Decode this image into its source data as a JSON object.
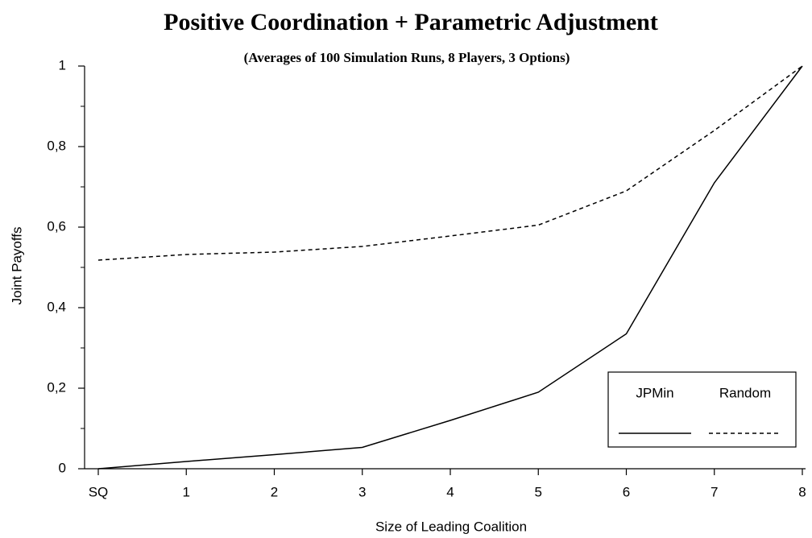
{
  "chart_data": {
    "type": "line",
    "title": "Positive Coordination + Parametric Adjustment",
    "subtitle": "(Averages of 100 Simulation Runs, 8 Players, 3 Options)",
    "x_label": "Size of Leading Coalition",
    "y_label": "Joint Payoffs",
    "categories": [
      "SQ",
      "1",
      "2",
      "3",
      "4",
      "5",
      "6",
      "7",
      "8"
    ],
    "series": [
      {
        "name": "JPMin",
        "color": "#000000",
        "dash": "solid",
        "values": [
          0,
          0.018,
          0.035,
          0.053,
          0.12,
          0.19,
          0.335,
          0.71,
          1.0
        ]
      },
      {
        "name": "Random",
        "color": "#000000",
        "dash": "dashed",
        "values": [
          0.518,
          0.532,
          0.538,
          0.552,
          0.578,
          0.605,
          0.69,
          0.84,
          1.0
        ]
      }
    ],
    "ylim": [
      0,
      1
    ],
    "yticks": [
      0,
      {
        "value": 0.2,
        "label": "0,2"
      },
      {
        "value": 0.4,
        "label": "0,4"
      },
      {
        "value": 0.6,
        "label": "0,6"
      },
      {
        "value": 0.8,
        "label": "0,8"
      },
      1
    ],
    "yminorticks": [
      0.1,
      0.3,
      0.5,
      0.7,
      0.9
    ],
    "legend": "lower right"
  }
}
